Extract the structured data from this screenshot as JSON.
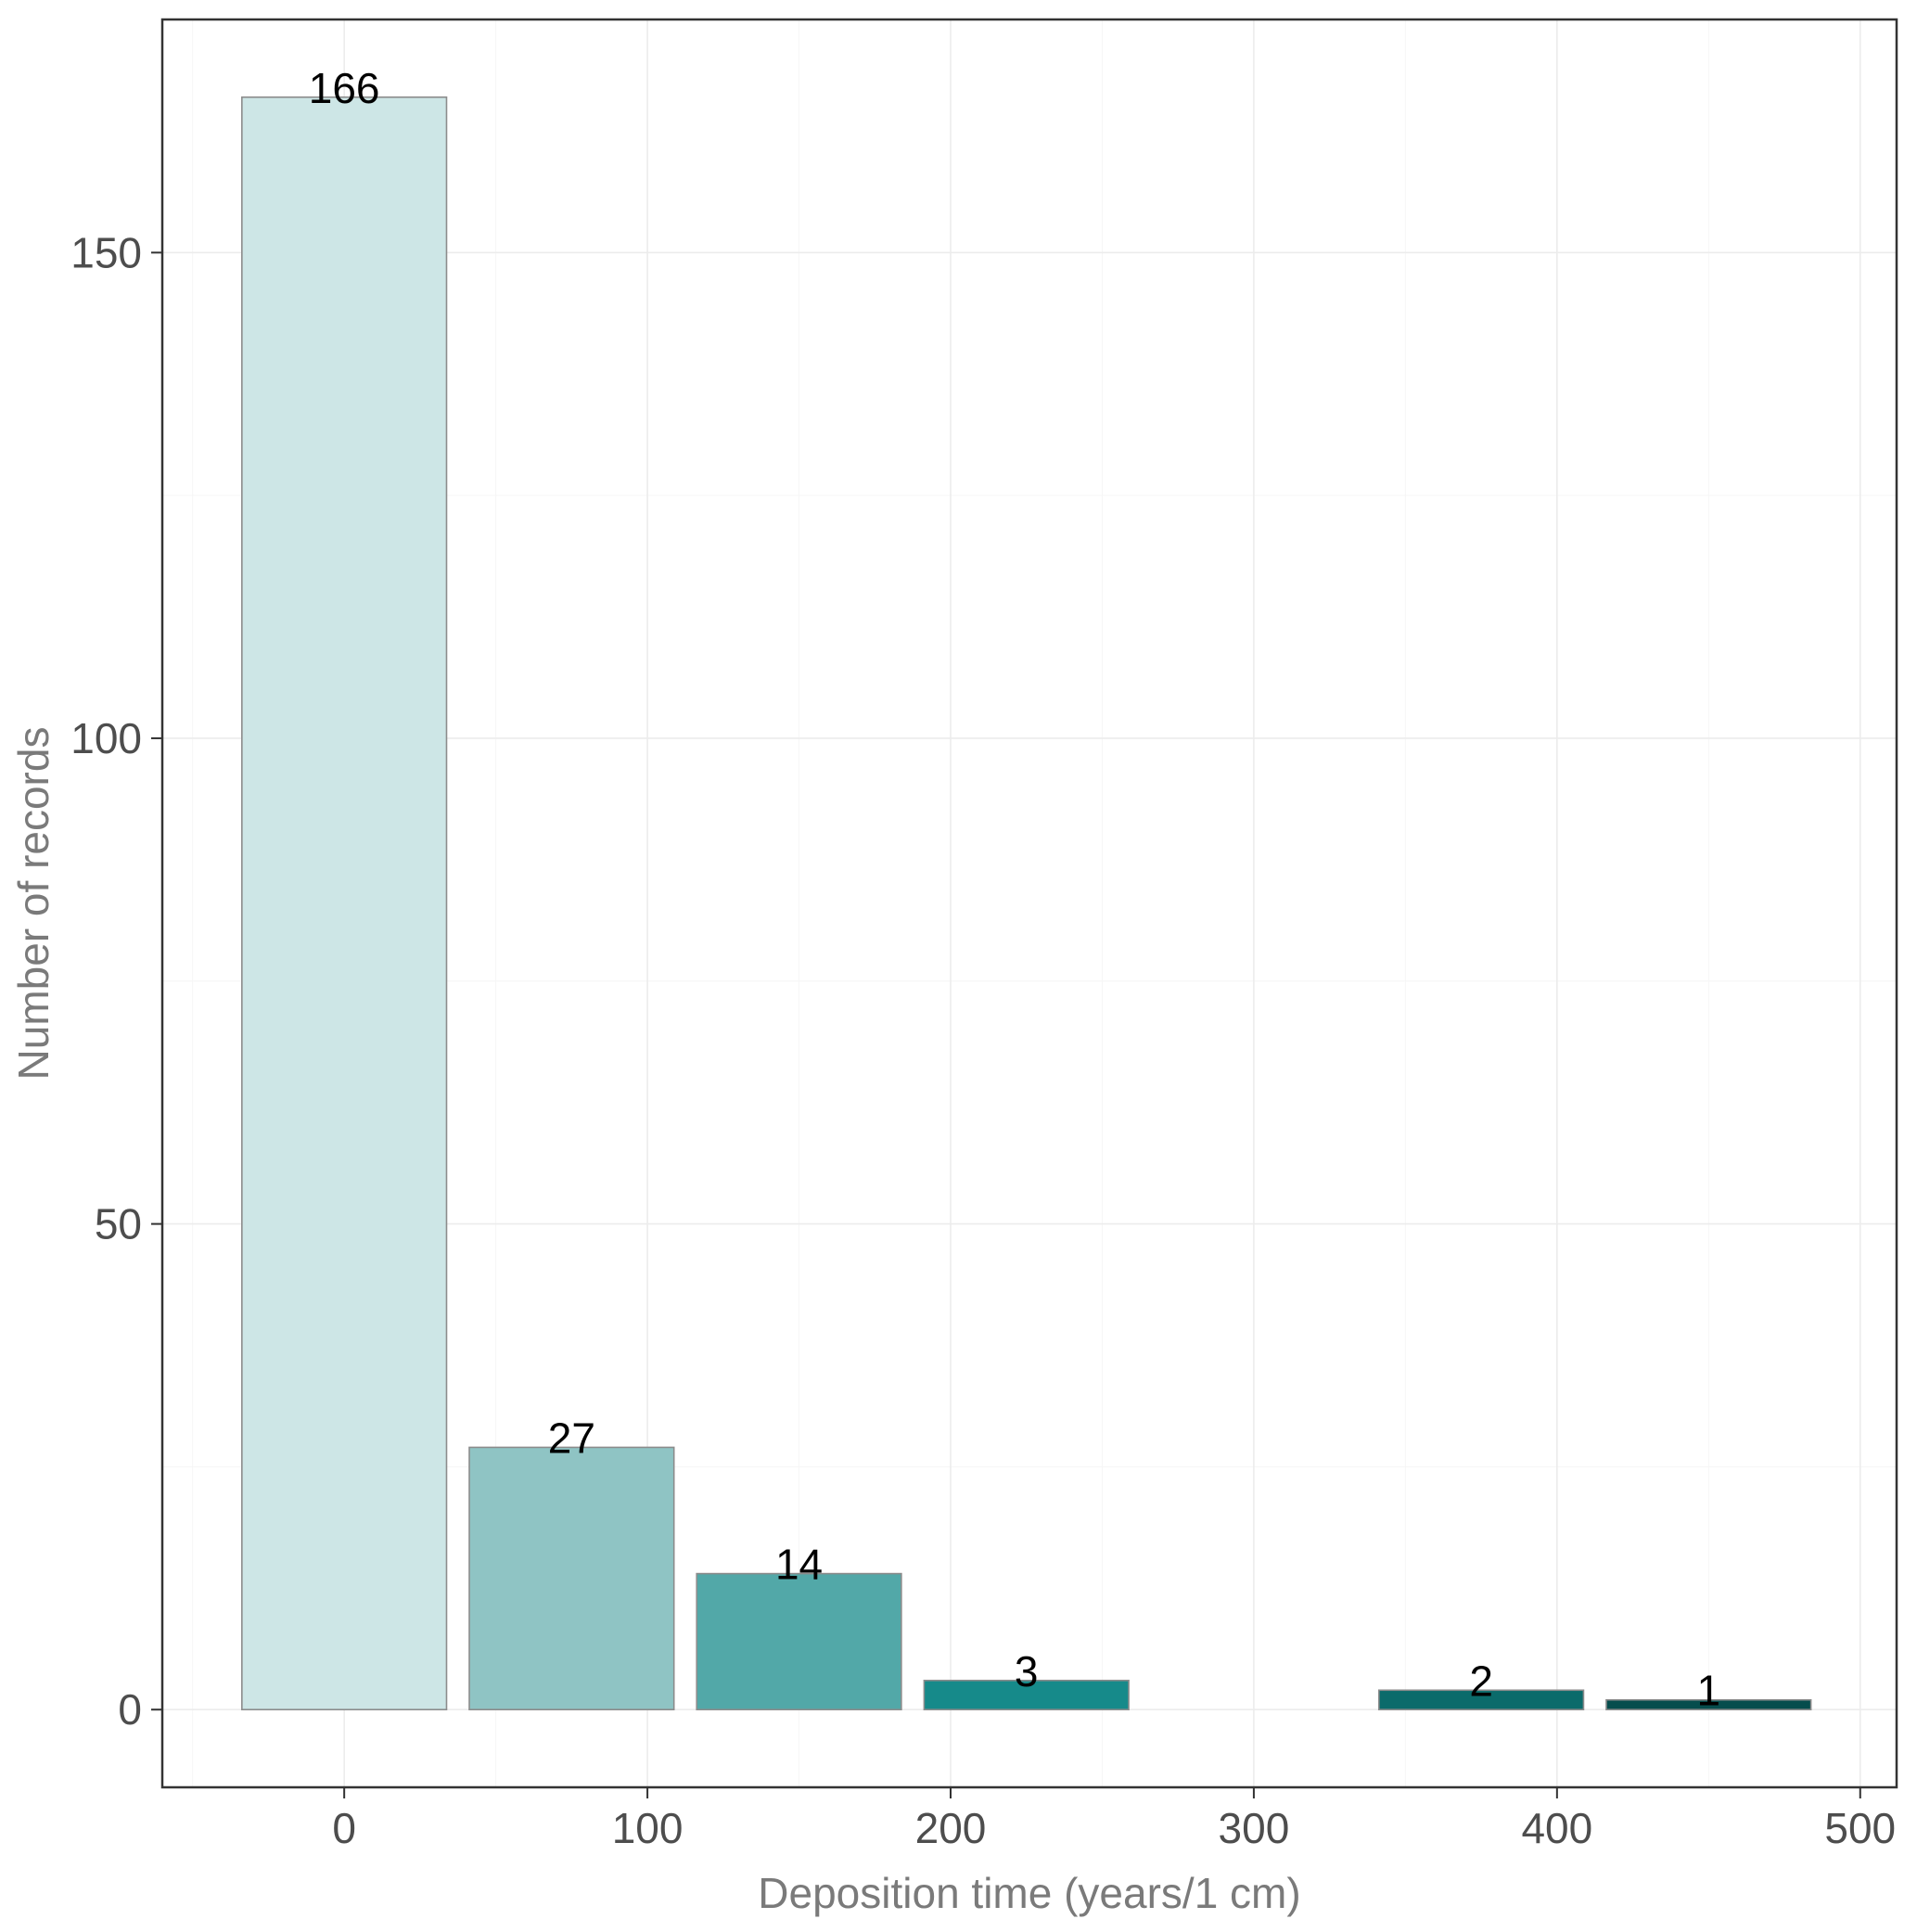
{
  "chart_data": {
    "type": "bar",
    "title": "",
    "xlabel": "Deposition time (years/1 cm)",
    "ylabel": "Number of records",
    "xlim": [
      -60,
      512
    ],
    "ylim": [
      -8,
      174
    ],
    "x_ticks": [
      0,
      100,
      200,
      300,
      400,
      500
    ],
    "y_ticks": [
      0,
      50,
      100,
      150
    ],
    "bin_width": 75,
    "bar_width": 67.5,
    "bars": [
      {
        "x": 0,
        "value": 166,
        "label": "166",
        "color": "#cde6e6"
      },
      {
        "x": 75,
        "value": 27,
        "label": "27",
        "color": "#8fc4c4"
      },
      {
        "x": 150,
        "value": 14,
        "label": "14",
        "color": "#52a8a8"
      },
      {
        "x": 225,
        "value": 3,
        "label": "3",
        "color": "#168a8a"
      },
      {
        "x": 375,
        "value": 2,
        "label": "2",
        "color": "#0b6b6b"
      },
      {
        "x": 450,
        "value": 1,
        "label": "1",
        "color": "#064d4d"
      }
    ],
    "grid": true,
    "legend": "none"
  }
}
